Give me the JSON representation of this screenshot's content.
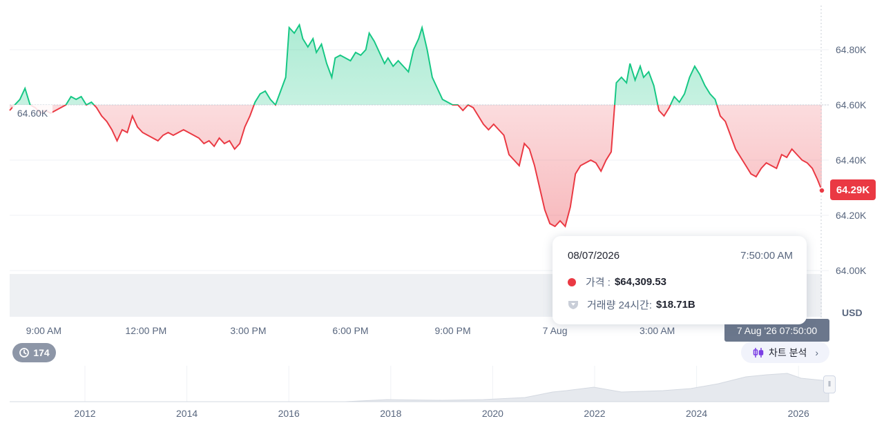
{
  "chart_data": {
    "type": "area",
    "series_name": "가격",
    "reference_value": 64600,
    "current_value": 64290,
    "ylim": [
      64000,
      64960
    ],
    "y_ticks": [
      64000,
      64200,
      64400,
      64600,
      64800
    ],
    "y_tick_labels": [
      "64.00K",
      "64.20K",
      "64.40K",
      "64.60K",
      "64.80K"
    ],
    "y_unit": "USD",
    "x_tick_labels": [
      "9:00 AM",
      "12:00 PM",
      "3:00 PM",
      "6:00 PM",
      "9:00 PM",
      "7 Aug",
      "3:00 AM"
    ],
    "x_tick_hours": [
      9,
      12,
      15,
      18,
      21,
      24,
      27
    ],
    "x_range_hours": [
      8.0,
      31.83
    ],
    "points": [
      [
        8.0,
        64580
      ],
      [
        8.3,
        64620
      ],
      [
        8.45,
        64660
      ],
      [
        8.6,
        64600
      ],
      [
        8.75,
        64590
      ],
      [
        8.9,
        64570
      ],
      [
        9.05,
        64580
      ],
      [
        9.2,
        64570
      ],
      [
        9.35,
        64580
      ],
      [
        9.5,
        64590
      ],
      [
        9.65,
        64600
      ],
      [
        9.8,
        64630
      ],
      [
        9.95,
        64620
      ],
      [
        10.1,
        64630
      ],
      [
        10.25,
        64600
      ],
      [
        10.4,
        64610
      ],
      [
        10.55,
        64590
      ],
      [
        10.7,
        64560
      ],
      [
        10.85,
        64540
      ],
      [
        11.0,
        64510
      ],
      [
        11.15,
        64470
      ],
      [
        11.3,
        64510
      ],
      [
        11.45,
        64500
      ],
      [
        11.6,
        64560
      ],
      [
        11.75,
        64520
      ],
      [
        11.9,
        64500
      ],
      [
        12.05,
        64490
      ],
      [
        12.2,
        64480
      ],
      [
        12.35,
        64470
      ],
      [
        12.5,
        64490
      ],
      [
        12.65,
        64500
      ],
      [
        12.8,
        64490
      ],
      [
        12.95,
        64500
      ],
      [
        13.1,
        64510
      ],
      [
        13.25,
        64500
      ],
      [
        13.4,
        64490
      ],
      [
        13.55,
        64480
      ],
      [
        13.7,
        64460
      ],
      [
        13.85,
        64470
      ],
      [
        14.0,
        64450
      ],
      [
        14.15,
        64480
      ],
      [
        14.3,
        64460
      ],
      [
        14.45,
        64470
      ],
      [
        14.6,
        64440
      ],
      [
        14.75,
        64460
      ],
      [
        14.9,
        64520
      ],
      [
        15.05,
        64560
      ],
      [
        15.2,
        64610
      ],
      [
        15.35,
        64640
      ],
      [
        15.5,
        64650
      ],
      [
        15.65,
        64620
      ],
      [
        15.8,
        64600
      ],
      [
        15.95,
        64650
      ],
      [
        16.1,
        64700
      ],
      [
        16.2,
        64880
      ],
      [
        16.35,
        64860
      ],
      [
        16.5,
        64890
      ],
      [
        16.6,
        64840
      ],
      [
        16.75,
        64810
      ],
      [
        16.9,
        64840
      ],
      [
        17.0,
        64790
      ],
      [
        17.15,
        64820
      ],
      [
        17.3,
        64750
      ],
      [
        17.45,
        64700
      ],
      [
        17.55,
        64770
      ],
      [
        17.7,
        64780
      ],
      [
        17.85,
        64770
      ],
      [
        18.0,
        64760
      ],
      [
        18.15,
        64790
      ],
      [
        18.3,
        64780
      ],
      [
        18.45,
        64800
      ],
      [
        18.55,
        64860
      ],
      [
        18.7,
        64830
      ],
      [
        18.85,
        64790
      ],
      [
        19.0,
        64750
      ],
      [
        19.1,
        64770
      ],
      [
        19.25,
        64740
      ],
      [
        19.4,
        64760
      ],
      [
        19.55,
        64740
      ],
      [
        19.7,
        64720
      ],
      [
        19.85,
        64800
      ],
      [
        20.0,
        64840
      ],
      [
        20.1,
        64880
      ],
      [
        20.25,
        64800
      ],
      [
        20.4,
        64700
      ],
      [
        20.55,
        64660
      ],
      [
        20.7,
        64620
      ],
      [
        20.85,
        64610
      ],
      [
        21.0,
        64600
      ],
      [
        21.15,
        64600
      ],
      [
        21.3,
        64580
      ],
      [
        21.45,
        64600
      ],
      [
        21.6,
        64590
      ],
      [
        21.75,
        64560
      ],
      [
        21.9,
        64530
      ],
      [
        22.05,
        64510
      ],
      [
        22.2,
        64530
      ],
      [
        22.35,
        64510
      ],
      [
        22.5,
        64490
      ],
      [
        22.65,
        64420
      ],
      [
        22.8,
        64400
      ],
      [
        22.95,
        64380
      ],
      [
        23.1,
        64460
      ],
      [
        23.25,
        64440
      ],
      [
        23.4,
        64380
      ],
      [
        23.55,
        64300
      ],
      [
        23.7,
        64220
      ],
      [
        23.85,
        64170
      ],
      [
        24.0,
        64160
      ],
      [
        24.15,
        64180
      ],
      [
        24.3,
        64160
      ],
      [
        24.45,
        64230
      ],
      [
        24.6,
        64350
      ],
      [
        24.75,
        64380
      ],
      [
        24.9,
        64390
      ],
      [
        25.05,
        64400
      ],
      [
        25.2,
        64390
      ],
      [
        25.35,
        64360
      ],
      [
        25.5,
        64400
      ],
      [
        25.65,
        64430
      ],
      [
        25.8,
        64680
      ],
      [
        25.95,
        64700
      ],
      [
        26.1,
        64680
      ],
      [
        26.2,
        64750
      ],
      [
        26.35,
        64690
      ],
      [
        26.5,
        64740
      ],
      [
        26.6,
        64700
      ],
      [
        26.75,
        64720
      ],
      [
        26.9,
        64670
      ],
      [
        27.05,
        64580
      ],
      [
        27.2,
        64560
      ],
      [
        27.35,
        64590
      ],
      [
        27.5,
        64630
      ],
      [
        27.65,
        64610
      ],
      [
        27.8,
        64640
      ],
      [
        27.95,
        64700
      ],
      [
        28.1,
        64740
      ],
      [
        28.25,
        64710
      ],
      [
        28.4,
        64670
      ],
      [
        28.55,
        64640
      ],
      [
        28.7,
        64620
      ],
      [
        28.85,
        64560
      ],
      [
        29.0,
        64540
      ],
      [
        29.15,
        64490
      ],
      [
        29.3,
        64440
      ],
      [
        29.45,
        64410
      ],
      [
        29.6,
        64380
      ],
      [
        29.75,
        64350
      ],
      [
        29.9,
        64340
      ],
      [
        30.05,
        64370
      ],
      [
        30.2,
        64390
      ],
      [
        30.35,
        64380
      ],
      [
        30.5,
        64370
      ],
      [
        30.65,
        64420
      ],
      [
        30.8,
        64410
      ],
      [
        30.95,
        64440
      ],
      [
        31.1,
        64420
      ],
      [
        31.25,
        64400
      ],
      [
        31.4,
        64390
      ],
      [
        31.55,
        64370
      ],
      [
        31.7,
        64330
      ],
      [
        31.83,
        64290
      ]
    ]
  },
  "price_axis": {
    "reference_label": "64.60K",
    "current_label": "64.29K",
    "unit_label": "USD"
  },
  "tooltip": {
    "date": "08/07/2026",
    "time": "7:50:00 AM",
    "price_label": "가격 :",
    "price_value": "$64,309.53",
    "volume_label": "거래량 24시간:",
    "volume_value": "$18.71B"
  },
  "crosshair_time_label": "7 Aug '26 07:50:00",
  "history_count": "174",
  "analysis_button_label": "차트 분석",
  "navigator": {
    "year_labels": [
      "2012",
      "2014",
      "2016",
      "2018",
      "2020",
      "2022",
      "2024",
      "2026"
    ]
  },
  "colors": {
    "up": "#16c784",
    "down": "#ea3943",
    "grid": "#eff2f5",
    "axis_text": "#58667e"
  }
}
